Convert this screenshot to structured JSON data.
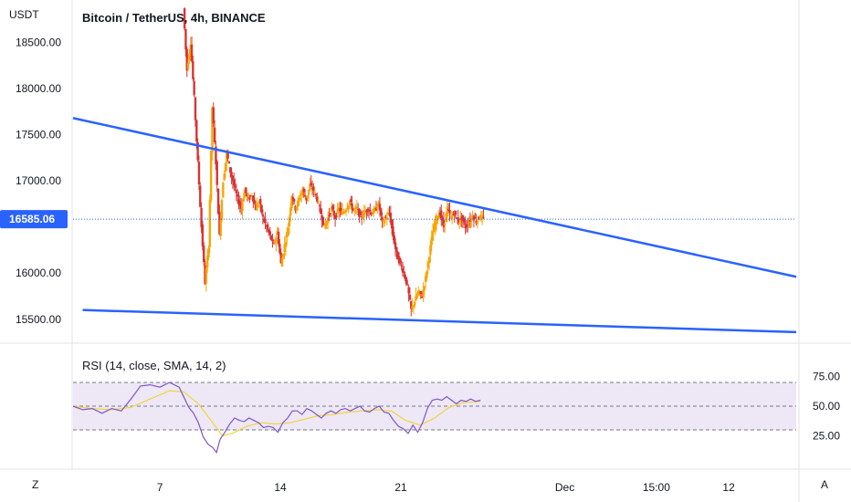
{
  "chart_data": {
    "type": "candlestick",
    "title": "Bitcoin / TetherUS, 4h, BINANCE",
    "unit_label": "USDT",
    "current_price": 16585.06,
    "current_price_label": "16585.06",
    "price_ylim": [
      15300,
      18900
    ],
    "price_yticks": [
      {
        "value": 15500,
        "label": "15500.00"
      },
      {
        "value": 16000,
        "label": "16000.00"
      },
      {
        "value": 17000,
        "label": "17000.00"
      },
      {
        "value": 17500,
        "label": "17500.00"
      },
      {
        "value": 18000,
        "label": "18000.00"
      },
      {
        "value": 18500,
        "label": "18500.00"
      }
    ],
    "x_domain": [
      0,
      30
    ],
    "xticks": [
      {
        "x": 3.6,
        "label": "7"
      },
      {
        "x": 8.6,
        "label": "14"
      },
      {
        "x": 13.6,
        "label": "21"
      },
      {
        "x": 20.4,
        "label": "Dec"
      },
      {
        "x": 24.2,
        "label": "15:00"
      },
      {
        "x": 27.2,
        "label": "12"
      }
    ],
    "trendlines": [
      {
        "name": "upper",
        "points": [
          [
            0,
            17680
          ],
          [
            30,
            15960
          ]
        ],
        "color": "#2962ff"
      },
      {
        "name": "lower",
        "points": [
          [
            0.4,
            15600
          ],
          [
            30,
            15360
          ]
        ],
        "color": "#2962ff"
      }
    ],
    "price_path": [
      [
        4.6,
        18870
      ],
      [
        4.75,
        18200
      ],
      [
        4.9,
        18500
      ],
      [
        5.05,
        17900
      ],
      [
        5.2,
        17200
      ],
      [
        5.35,
        16500
      ],
      [
        5.5,
        15900
      ],
      [
        5.65,
        16300
      ],
      [
        5.8,
        17800
      ],
      [
        5.95,
        17200
      ],
      [
        6.1,
        16400
      ],
      [
        6.25,
        17000
      ],
      [
        6.4,
        17300
      ],
      [
        6.55,
        17100
      ],
      [
        6.7,
        16950
      ],
      [
        6.85,
        16800
      ],
      [
        7.0,
        16700
      ],
      [
        7.15,
        16900
      ],
      [
        7.3,
        16800
      ],
      [
        7.45,
        16850
      ],
      [
        7.6,
        16700
      ],
      [
        7.75,
        16780
      ],
      [
        7.9,
        16600
      ],
      [
        8.05,
        16500
      ],
      [
        8.2,
        16400
      ],
      [
        8.35,
        16300
      ],
      [
        8.5,
        16450
      ],
      [
        8.65,
        16100
      ],
      [
        8.8,
        16300
      ],
      [
        8.95,
        16500
      ],
      [
        9.1,
        16850
      ],
      [
        9.25,
        16700
      ],
      [
        9.4,
        16800
      ],
      [
        9.55,
        16900
      ],
      [
        9.7,
        16800
      ],
      [
        9.85,
        16950
      ],
      [
        10.0,
        16900
      ],
      [
        10.15,
        16800
      ],
      [
        10.3,
        16650
      ],
      [
        10.45,
        16500
      ],
      [
        10.6,
        16600
      ],
      [
        10.75,
        16700
      ],
      [
        10.9,
        16600
      ],
      [
        11.05,
        16700
      ],
      [
        11.2,
        16650
      ],
      [
        11.35,
        16700
      ],
      [
        11.5,
        16780
      ],
      [
        11.65,
        16680
      ],
      [
        11.8,
        16700
      ],
      [
        11.95,
        16600
      ],
      [
        12.1,
        16650
      ],
      [
        12.25,
        16700
      ],
      [
        12.4,
        16650
      ],
      [
        12.55,
        16680
      ],
      [
        12.7,
        16750
      ],
      [
        12.85,
        16550
      ],
      [
        13.0,
        16600
      ],
      [
        13.15,
        16650
      ],
      [
        13.3,
        16400
      ],
      [
        13.45,
        16200
      ],
      [
        13.6,
        16100
      ],
      [
        13.75,
        16000
      ],
      [
        13.9,
        15850
      ],
      [
        14.05,
        15600
      ],
      [
        14.2,
        15700
      ],
      [
        14.35,
        15800
      ],
      [
        14.5,
        15750
      ],
      [
        14.65,
        15950
      ],
      [
        14.8,
        16200
      ],
      [
        14.95,
        16450
      ],
      [
        15.1,
        16600
      ],
      [
        15.25,
        16650
      ],
      [
        15.4,
        16500
      ],
      [
        15.55,
        16700
      ],
      [
        15.7,
        16600
      ],
      [
        15.85,
        16650
      ],
      [
        16.0,
        16550
      ],
      [
        16.15,
        16600
      ],
      [
        16.3,
        16500
      ],
      [
        16.45,
        16550
      ],
      [
        16.6,
        16620
      ],
      [
        16.75,
        16560
      ],
      [
        16.9,
        16620
      ],
      [
        17.05,
        16585
      ]
    ],
    "rsi": {
      "label": "RSI (14, close, SMA, 14, 2)",
      "ylim": [
        0,
        100
      ],
      "levels": [
        70,
        50,
        30
      ],
      "yticks": [
        {
          "value": 75,
          "label": "75.00"
        },
        {
          "value": 50,
          "label": "50.00"
        },
        {
          "value": 25,
          "label": "25.00"
        }
      ],
      "rsi_values": [
        [
          0.0,
          50
        ],
        [
          0.4,
          47
        ],
        [
          0.8,
          48
        ],
        [
          1.2,
          44
        ],
        [
          1.6,
          48
        ],
        [
          2.0,
          46
        ],
        [
          2.4,
          56
        ],
        [
          2.8,
          67
        ],
        [
          3.2,
          68
        ],
        [
          3.6,
          66
        ],
        [
          4.0,
          70
        ],
        [
          4.4,
          66
        ],
        [
          4.8,
          49
        ],
        [
          5.0,
          44
        ],
        [
          5.2,
          36
        ],
        [
          5.4,
          24
        ],
        [
          5.6,
          18
        ],
        [
          5.8,
          15
        ],
        [
          5.95,
          11
        ],
        [
          6.1,
          22
        ],
        [
          6.3,
          28
        ],
        [
          6.5,
          35
        ],
        [
          6.7,
          40
        ],
        [
          6.9,
          38
        ],
        [
          7.1,
          37
        ],
        [
          7.3,
          40
        ],
        [
          7.5,
          38
        ],
        [
          7.7,
          36
        ],
        [
          7.9,
          32
        ],
        [
          8.1,
          33
        ],
        [
          8.3,
          32
        ],
        [
          8.5,
          28
        ],
        [
          8.7,
          36
        ],
        [
          8.9,
          40
        ],
        [
          9.1,
          46
        ],
        [
          9.3,
          46
        ],
        [
          9.5,
          43
        ],
        [
          9.7,
          48
        ],
        [
          9.9,
          46
        ],
        [
          10.1,
          43
        ],
        [
          10.3,
          40
        ],
        [
          10.5,
          44
        ],
        [
          10.7,
          46
        ],
        [
          10.9,
          44
        ],
        [
          11.1,
          47
        ],
        [
          11.3,
          48
        ],
        [
          11.5,
          46
        ],
        [
          11.7,
          48
        ],
        [
          11.9,
          50
        ],
        [
          12.1,
          46
        ],
        [
          12.3,
          45
        ],
        [
          12.5,
          48
        ],
        [
          12.7,
          50
        ],
        [
          12.9,
          45
        ],
        [
          13.1,
          44
        ],
        [
          13.3,
          38
        ],
        [
          13.5,
          33
        ],
        [
          13.7,
          31
        ],
        [
          13.9,
          27
        ],
        [
          14.1,
          34
        ],
        [
          14.3,
          28
        ],
        [
          14.5,
          36
        ],
        [
          14.7,
          48
        ],
        [
          14.9,
          55
        ],
        [
          15.1,
          56
        ],
        [
          15.3,
          55
        ],
        [
          15.5,
          58
        ],
        [
          15.7,
          55
        ],
        [
          15.9,
          52
        ],
        [
          16.1,
          55
        ],
        [
          16.3,
          54
        ],
        [
          16.5,
          56
        ],
        [
          16.7,
          54
        ],
        [
          16.9,
          55
        ]
      ],
      "sma_values": [
        [
          0.0,
          50
        ],
        [
          0.8,
          48
        ],
        [
          1.6,
          47
        ],
        [
          2.4,
          49
        ],
        [
          3.2,
          56
        ],
        [
          4.0,
          63
        ],
        [
          4.6,
          62
        ],
        [
          5.2,
          52
        ],
        [
          5.8,
          36
        ],
        [
          6.2,
          25
        ],
        [
          6.6,
          27
        ],
        [
          7.2,
          33
        ],
        [
          7.8,
          36
        ],
        [
          8.4,
          35
        ],
        [
          9.0,
          36
        ],
        [
          9.6,
          39
        ],
        [
          10.2,
          42
        ],
        [
          10.8,
          43
        ],
        [
          11.4,
          45
        ],
        [
          12.0,
          46
        ],
        [
          12.6,
          47
        ],
        [
          13.2,
          46
        ],
        [
          13.8,
          38
        ],
        [
          14.4,
          34
        ],
        [
          15.0,
          40
        ],
        [
          15.6,
          49
        ],
        [
          16.2,
          53
        ],
        [
          16.9,
          54
        ]
      ]
    }
  },
  "toolbar": {
    "zoom_button_label": "Z",
    "auto_scale_button_label": "A"
  },
  "colors": {
    "up": "#f7a600",
    "down": "#d93434",
    "trendline": "#2962ff",
    "rsi_line": "#7e57c2",
    "rsi_sma": "#f2d43d",
    "rsi_band": "#ede7f6",
    "price_tag_bg": "#2962ff"
  }
}
